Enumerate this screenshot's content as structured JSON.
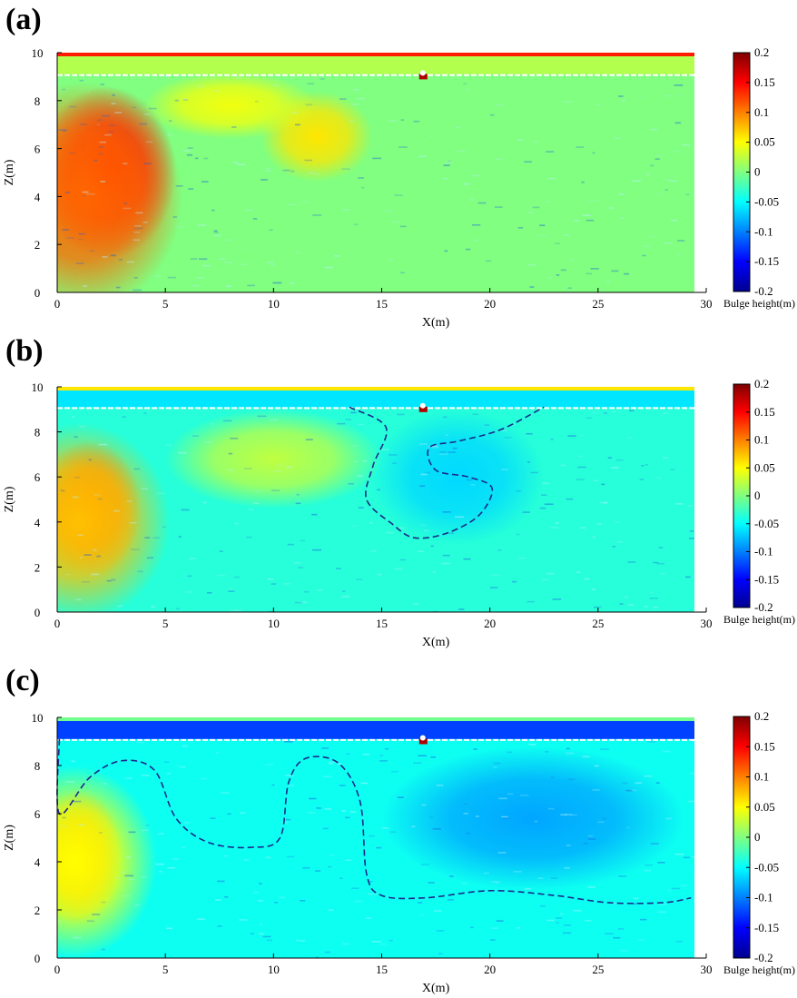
{
  "colormap": [
    "#00008f",
    "#0000ff",
    "#0080ff",
    "#00ffff",
    "#80ff80",
    "#ffff00",
    "#ff8000",
    "#ff0000",
    "#800000"
  ],
  "chart_data": [
    {
      "type": "heatmap",
      "panel_label": "(a)",
      "xlabel": "X(m)",
      "ylabel": "Z(m)",
      "xlim": [
        0,
        30
      ],
      "ylim": [
        0,
        10
      ],
      "xticks": [
        "0",
        "5",
        "10",
        "15",
        "20",
        "25",
        "30"
      ],
      "yticks": [
        "0",
        "2",
        "4",
        "6",
        "8",
        "10"
      ],
      "colorbar": {
        "label": "Bulge height(m)",
        "range": [
          -0.2,
          0.2
        ],
        "ticks": [
          "0.2",
          "0.15",
          "0.1",
          "0.05",
          "0",
          "-0.05",
          "-0.1",
          "-0.15",
          "-0.2"
        ]
      },
      "background_value": 0.0,
      "top_band_value": 0.02,
      "blobs": [
        {
          "x": 2.3,
          "z": 5.0,
          "rx": 3.2,
          "rz": 3.6,
          "value": 0.15
        },
        {
          "x": 1.2,
          "z": 4.0,
          "rx": 4.6,
          "rz": 4.8,
          "value": 0.11
        },
        {
          "x": 12.0,
          "z": 6.5,
          "rx": 2.6,
          "rz": 1.9,
          "value": 0.06
        },
        {
          "x": 8.0,
          "z": 7.8,
          "rx": 4.0,
          "rz": 1.4,
          "value": 0.045
        }
      ],
      "dashed_regions": []
    },
    {
      "type": "heatmap",
      "panel_label": "(b)",
      "xlabel": "X(m)",
      "ylabel": "Z(m)",
      "xlim": [
        0,
        30
      ],
      "ylim": [
        0,
        10
      ],
      "xticks": [
        "0",
        "5",
        "10",
        "15",
        "20",
        "25",
        "30"
      ],
      "yticks": [
        "0",
        "2",
        "4",
        "6",
        "8",
        "10"
      ],
      "colorbar": {
        "label": "Bulge height(m)",
        "range": [
          -0.2,
          0.2
        ],
        "ticks": [
          "0.2",
          "0.15",
          "0.1",
          "0.05",
          "0",
          "-0.05",
          "-0.1",
          "-0.15",
          "-0.2"
        ]
      },
      "background_value": -0.035,
      "top_band_value": -0.06,
      "blobs": [
        {
          "x": 1.5,
          "z": 4.6,
          "rx": 2.4,
          "rz": 3.0,
          "value": 0.115
        },
        {
          "x": 1.0,
          "z": 4.0,
          "rx": 4.2,
          "rz": 4.4,
          "value": 0.075
        },
        {
          "x": 10.0,
          "z": 6.8,
          "rx": 5.0,
          "rz": 2.2,
          "value": 0.025
        },
        {
          "x": 18.5,
          "z": 6.0,
          "rx": 4.0,
          "rz": 3.0,
          "value": -0.065
        }
      ],
      "dashed_regions": [
        [
          [
            13.5,
            9.1
          ],
          [
            15.2,
            8.2
          ],
          [
            14.6,
            6.5
          ],
          [
            14.3,
            5.0
          ],
          [
            15.5,
            3.9
          ],
          [
            16.5,
            3.3
          ],
          [
            18.0,
            3.5
          ],
          [
            19.5,
            4.3
          ],
          [
            20.1,
            5.5
          ],
          [
            19.0,
            6.0
          ],
          [
            17.5,
            6.3
          ],
          [
            17.2,
            7.3
          ],
          [
            18.6,
            7.6
          ],
          [
            20.5,
            8.1
          ],
          [
            22.5,
            9.1
          ]
        ]
      ]
    },
    {
      "type": "heatmap",
      "panel_label": "(c)",
      "xlabel": "X(m)",
      "ylabel": "Z(m)",
      "xlim": [
        0,
        30
      ],
      "ylim": [
        0,
        10
      ],
      "xticks": [
        "0",
        "5",
        "10",
        "15",
        "20",
        "25",
        "30"
      ],
      "yticks": [
        "0",
        "2",
        "4",
        "6",
        "8",
        "10"
      ],
      "colorbar": {
        "label": "Bulge height(m)",
        "range": [
          -0.2,
          0.2
        ],
        "ticks": [
          "0.2",
          "0.15",
          "0.1",
          "0.05",
          "0",
          "-0.05",
          "-0.1",
          "-0.15",
          "-0.2"
        ]
      },
      "background_value": -0.045,
      "top_band_value": -0.125,
      "blobs": [
        {
          "x": 1.0,
          "z": 4.2,
          "rx": 2.0,
          "rz": 2.8,
          "value": 0.09
        },
        {
          "x": 0.8,
          "z": 4.0,
          "rx": 3.8,
          "rz": 4.0,
          "value": 0.05
        },
        {
          "x": 22.0,
          "z": 5.8,
          "rx": 7.0,
          "rz": 3.0,
          "value": -0.085
        }
      ],
      "dashed_regions": [
        [
          [
            0.1,
            9.1
          ],
          [
            0.1,
            6.0
          ],
          [
            1.5,
            7.5
          ],
          [
            3.0,
            8.2
          ],
          [
            4.5,
            7.8
          ],
          [
            5.5,
            5.8
          ],
          [
            7.0,
            4.8
          ],
          [
            9.0,
            4.6
          ],
          [
            10.3,
            5.0
          ],
          [
            10.7,
            7.3
          ],
          [
            11.5,
            8.3
          ],
          [
            13.0,
            8.1
          ],
          [
            14.0,
            6.5
          ],
          [
            14.3,
            3.5
          ],
          [
            15.0,
            2.6
          ],
          [
            17.0,
            2.5
          ],
          [
            20.0,
            2.8
          ],
          [
            23.0,
            2.6
          ],
          [
            25.5,
            2.3
          ],
          [
            28.0,
            2.3
          ],
          [
            29.3,
            2.5
          ]
        ]
      ]
    }
  ]
}
